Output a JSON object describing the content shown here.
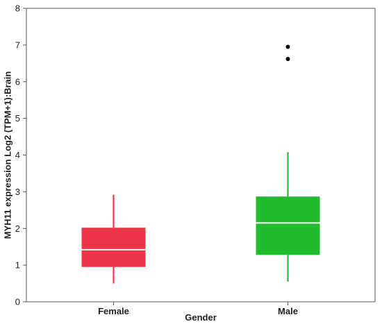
{
  "chart_data": {
    "type": "box",
    "xlabel": "Gender",
    "ylabel": "MYH11 expression Log2 (TPM+1):Brain",
    "ylim": [
      0,
      8
    ],
    "yticks": [
      0,
      1,
      2,
      3,
      4,
      5,
      6,
      7,
      8
    ],
    "grid": false,
    "categories": [
      "Female",
      "Male"
    ],
    "boxes": [
      {
        "category": "Female",
        "color": "#ee3547",
        "whisker_low": 0.5,
        "q1": 0.95,
        "median": 1.42,
        "q3": 2.02,
        "whisker_high": 2.92,
        "outliers": []
      },
      {
        "category": "Male",
        "color": "#21bb2e",
        "whisker_low": 0.55,
        "q1": 1.28,
        "median": 2.15,
        "q3": 2.87,
        "whisker_high": 4.08,
        "outliers": [
          6.62,
          6.95
        ]
      }
    ]
  }
}
